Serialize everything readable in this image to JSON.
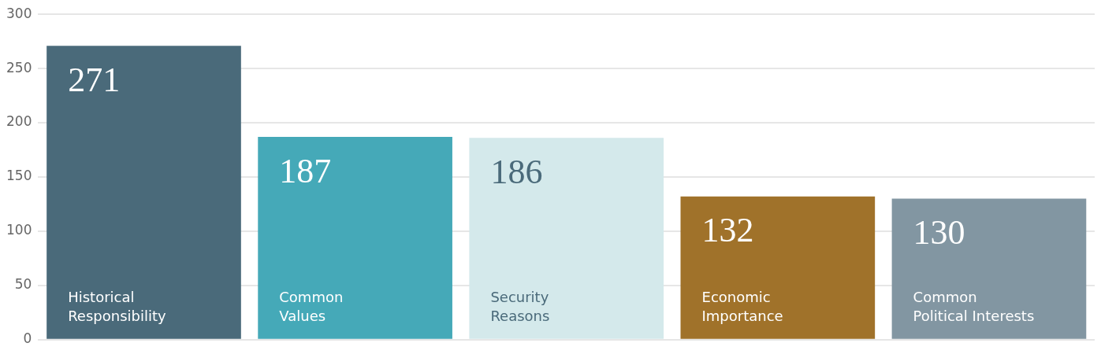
{
  "chart_data": {
    "type": "bar",
    "categories": [
      "Historical Responsibility",
      "Common Values",
      "Security Reasons",
      "Economic Importance",
      "Common Political Interests"
    ],
    "values": [
      271,
      187,
      186,
      132,
      130
    ],
    "colors": [
      "#4a6a7a",
      "#45a9b8",
      "#d4e9eb",
      "#a0722a",
      "#8296a2"
    ],
    "ylim": [
      0,
      300
    ],
    "yticks": [
      0,
      50,
      100,
      150,
      200,
      250,
      300
    ],
    "grid": "y",
    "data_labels": true,
    "legend": false
  }
}
